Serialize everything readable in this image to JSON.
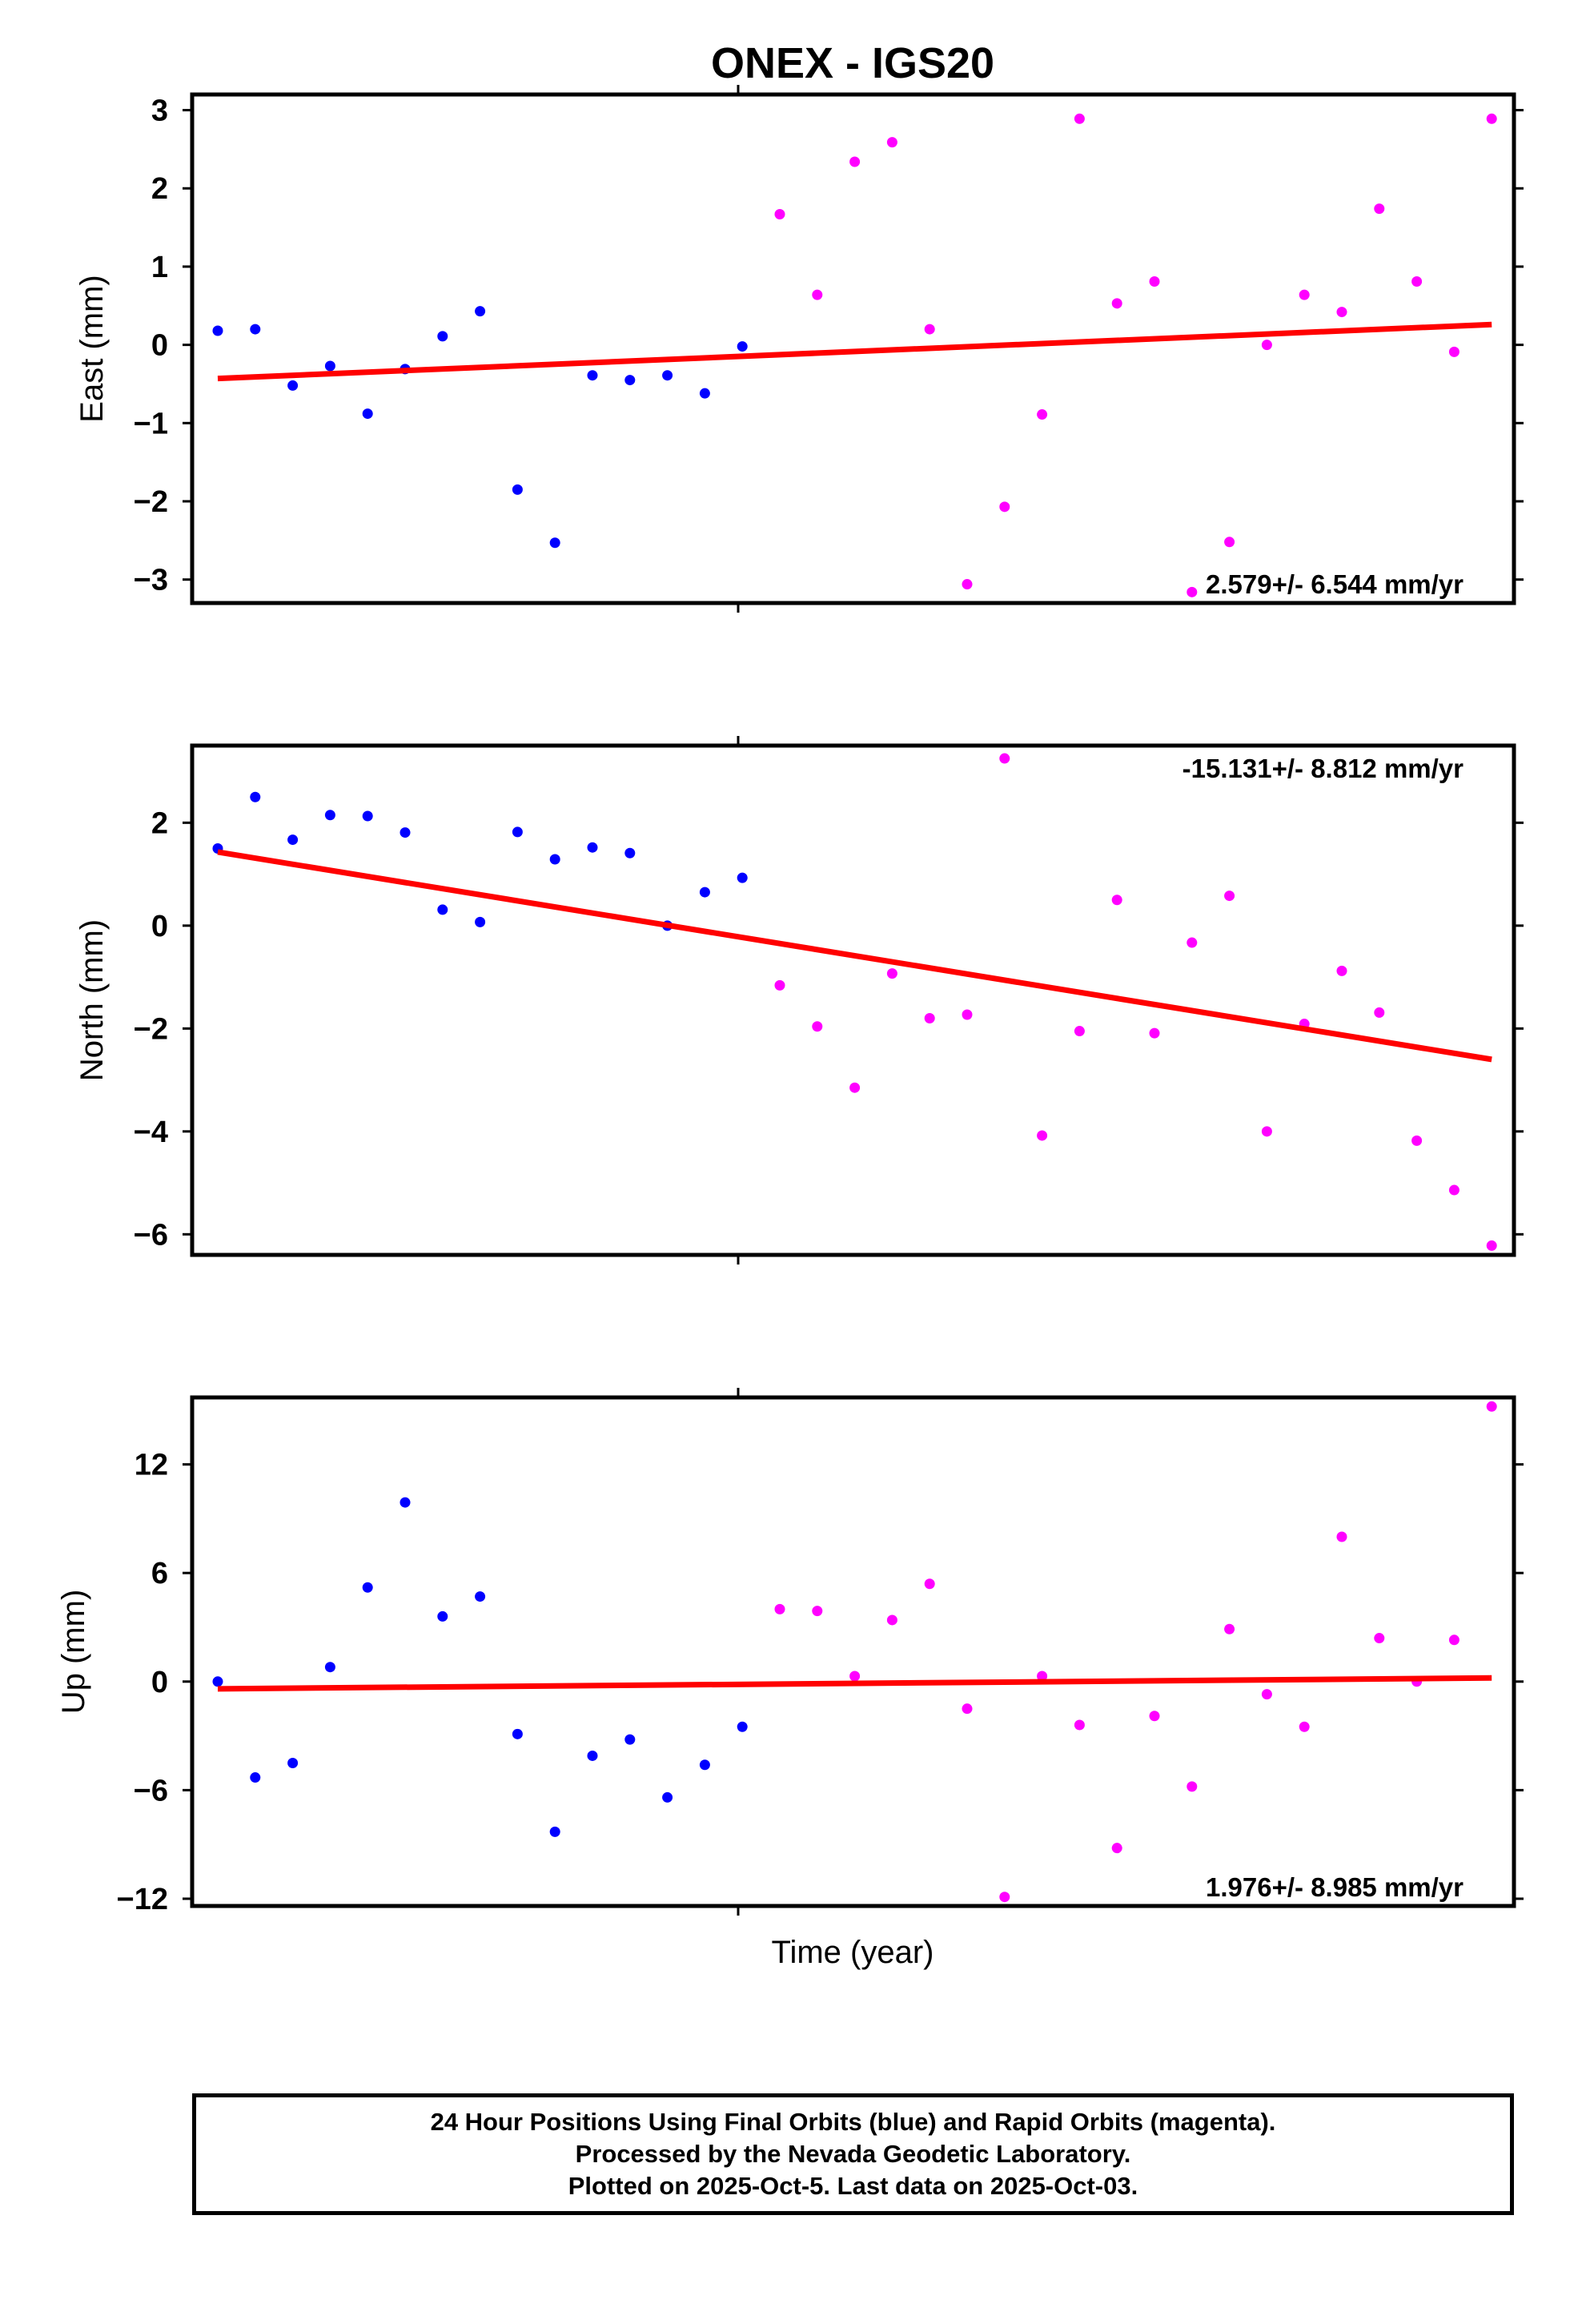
{
  "chart_data": {
    "title": "ONEX - IGS20",
    "xlabel": "Time (year)",
    "colors": {
      "final": "#0000ff",
      "rapid": "#ff00ff",
      "trend": "#ff0000",
      "frame": "#000000"
    },
    "legend": "Final Orbits (blue), Rapid Orbits (magenta)",
    "panels": [
      {
        "type": "scatter",
        "ylabel": "East (mm)",
        "ylim": [
          -3.3,
          3.2
        ],
        "yticks": [
          -3,
          -2,
          -1,
          0,
          1,
          2,
          3
        ],
        "rate": "2.579+/- 6.544 mm/yr",
        "rate_position": "bottom-right",
        "final": [
          0.18,
          0.2,
          -0.52,
          -0.27,
          -0.88,
          -0.31,
          0.11,
          0.43,
          -1.85,
          -2.53,
          -0.39,
          -0.45,
          -0.39,
          -0.62,
          -0.02
        ],
        "rapid": [
          1.67,
          0.64,
          2.34,
          2.59,
          0.2,
          -3.06,
          -2.07,
          -0.89,
          2.89,
          0.53,
          0.81,
          -3.16,
          -2.52,
          0.0,
          0.64,
          0.42,
          1.74,
          0.81,
          -0.09,
          2.89
        ],
        "trend": [
          -0.43,
          0.26
        ]
      },
      {
        "type": "scatter",
        "ylabel": "North (mm)",
        "ylim": [
          -6.4,
          3.5
        ],
        "yticks": [
          -6,
          -4,
          -2,
          0,
          2
        ],
        "rate": "-15.131+/- 8.812 mm/yr",
        "rate_position": "top-right",
        "final": [
          1.5,
          2.5,
          1.67,
          2.15,
          2.13,
          1.81,
          0.31,
          0.07,
          1.82,
          1.29,
          1.52,
          1.41,
          0.0,
          0.65,
          0.93
        ],
        "rapid": [
          -1.16,
          -1.96,
          -3.15,
          -0.93,
          -1.8,
          -1.73,
          3.25,
          -4.08,
          -2.05,
          0.5,
          -2.09,
          -0.33,
          0.58,
          -4.0,
          -1.91,
          -0.88,
          -1.69,
          -4.18,
          -5.14,
          -6.22
        ],
        "trend": [
          1.43,
          -2.6
        ]
      },
      {
        "type": "scatter",
        "ylabel": "Up (mm)",
        "ylim": [
          -12.4,
          15.7
        ],
        "yticks": [
          -12,
          -6,
          0,
          6,
          12
        ],
        "rate": "1.976+/- 8.985 mm/yr",
        "rate_position": "bottom-right",
        "final": [
          0.0,
          -5.3,
          -4.5,
          0.8,
          5.2,
          9.9,
          3.6,
          4.7,
          -2.9,
          -8.3,
          -4.1,
          -3.2,
          -6.4,
          -4.6,
          -2.5
        ],
        "rapid": [
          4.0,
          3.9,
          0.3,
          3.4,
          5.4,
          -1.5,
          -11.9,
          0.3,
          -2.4,
          -9.2,
          -1.9,
          -5.8,
          2.9,
          -0.7,
          -2.5,
          8.0,
          2.4,
          0.0,
          2.3,
          15.2
        ],
        "trend": [
          -0.4,
          0.2
        ]
      }
    ]
  },
  "footer": {
    "line1": "24 Hour Positions Using Final Orbits (blue) and Rapid Orbits (magenta).",
    "line2": "Processed by the Nevada Geodetic Laboratory.",
    "line3": "Plotted on 2025-Oct-5. Last data on 2025-Oct-03."
  }
}
